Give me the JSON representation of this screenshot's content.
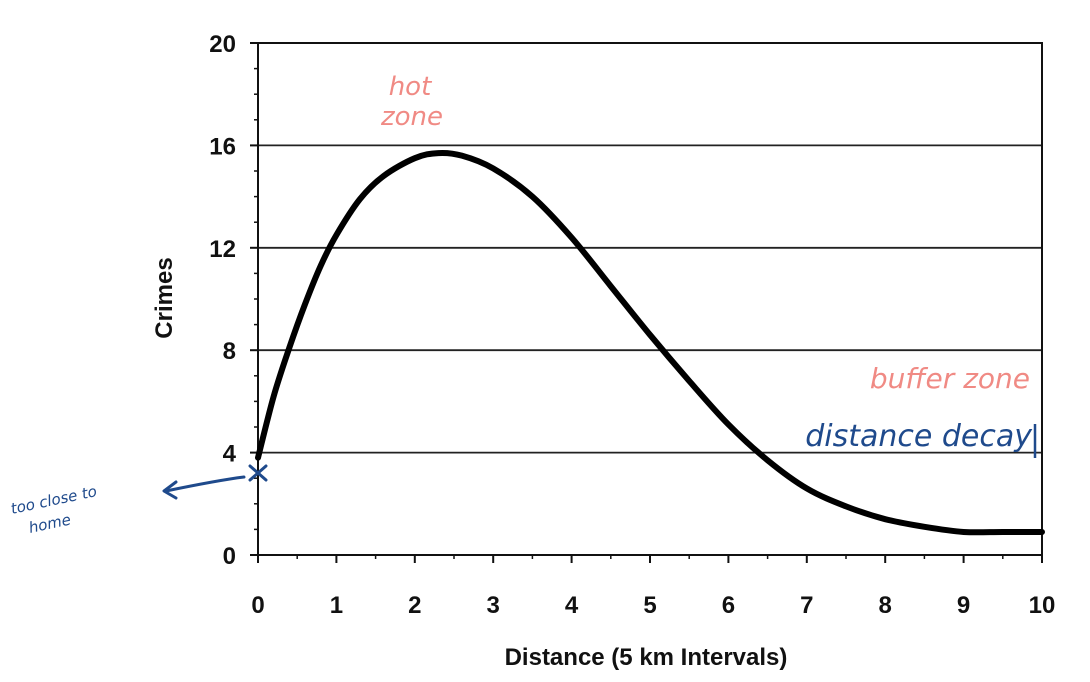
{
  "chart_data": {
    "type": "line",
    "title": "",
    "xlabel": "Distance (5 km Intervals)",
    "ylabel": "Crimes",
    "xlim": [
      0,
      10
    ],
    "ylim": [
      0,
      20
    ],
    "x_ticks": [
      "0",
      "1",
      "2",
      "3",
      "4",
      "5",
      "6",
      "7",
      "8",
      "9",
      "10"
    ],
    "y_ticks": [
      "0",
      "4",
      "8",
      "12",
      "16",
      "20"
    ],
    "grid": "horizontal",
    "series": [
      {
        "color": "#000000",
        "x": [
          0,
          0.2,
          0.4,
          0.6,
          0.8,
          1.0,
          1.3,
          1.6,
          2.0,
          2.3,
          2.6,
          3.0,
          3.5,
          4.0,
          4.5,
          5.0,
          5.5,
          6.0,
          6.5,
          7.0,
          7.5,
          8.0,
          8.5,
          9.0,
          9.5,
          10.0
        ],
        "y": [
          3.8,
          6.2,
          8.1,
          9.8,
          11.3,
          12.5,
          13.9,
          14.8,
          15.5,
          15.7,
          15.6,
          15.1,
          14.0,
          12.4,
          10.5,
          8.6,
          6.8,
          5.1,
          3.7,
          2.6,
          1.9,
          1.4,
          1.1,
          0.9,
          0.9,
          0.9
        ]
      }
    ],
    "annotations": {
      "hot_zone": {
        "text_line1": "hot",
        "text_line2": "zone",
        "color": "#f08a84"
      },
      "buffer_zone": {
        "text": "buffer zone",
        "color": "#f08a84"
      },
      "distance_decay": {
        "text": "distance decay",
        "color": "#1f4a8c"
      },
      "too_close": {
        "text_line1": "too close to",
        "text_line2": "home",
        "color": "#1f4a8c"
      }
    }
  }
}
